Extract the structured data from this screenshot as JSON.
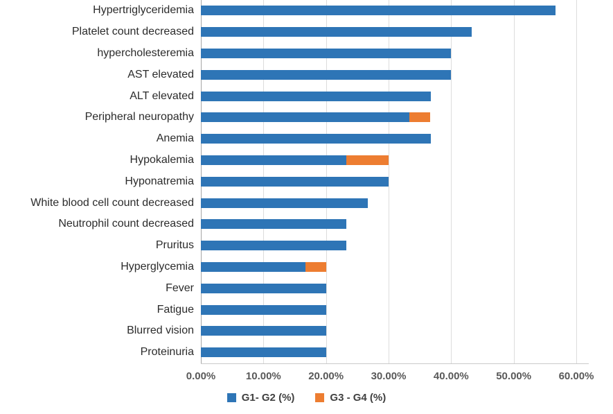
{
  "chart_data": {
    "type": "bar",
    "orientation": "horizontal",
    "stacked": true,
    "title": "",
    "xlabel": "",
    "ylabel": "",
    "xlim": [
      0,
      60
    ],
    "grid": true,
    "legend_position": "bottom",
    "x_ticks": [
      "0.00%",
      "10.00%",
      "20.00%",
      "30.00%",
      "40.00%",
      "50.00%",
      "60.00%"
    ],
    "x_tick_values": [
      0,
      10,
      20,
      30,
      40,
      50,
      60
    ],
    "categories": [
      "Hypertriglyceridemia",
      "Platelet count decreased",
      "hypercholesteremia",
      "AST elevated",
      "ALT elevated",
      "Peripheral neuropathy",
      "Anemia",
      "Hypokalemia",
      "Hyponatremia",
      "White blood cell count decreased",
      "Neutrophil count decreased",
      "Pruritus",
      "Hyperglycemia",
      "Fever",
      "Fatigue",
      "Blurred vision",
      "Proteinuria"
    ],
    "series": [
      {
        "name": "G1- G2 (%)",
        "color": "#2E75B6",
        "values": [
          56.7,
          43.3,
          40.0,
          40.0,
          36.7,
          33.3,
          36.7,
          23.3,
          30.0,
          26.7,
          23.3,
          23.3,
          16.7,
          20.0,
          20.0,
          20.0,
          20.0
        ]
      },
      {
        "name": "G3 - G4 (%)",
        "color": "#ED7D31",
        "values": [
          0,
          0,
          0,
          0,
          0,
          3.3,
          0,
          6.7,
          0,
          0,
          0,
          0,
          3.3,
          0,
          0,
          0,
          0
        ]
      }
    ],
    "colors": {
      "gridline": "#dcdcdc",
      "zero_axis_line": "#a6a6a6",
      "bottom_axis_line": "#c9c9c9",
      "tick_text": "#595959",
      "category_text": "#2b2b2b",
      "legend_text": "#404040"
    }
  }
}
